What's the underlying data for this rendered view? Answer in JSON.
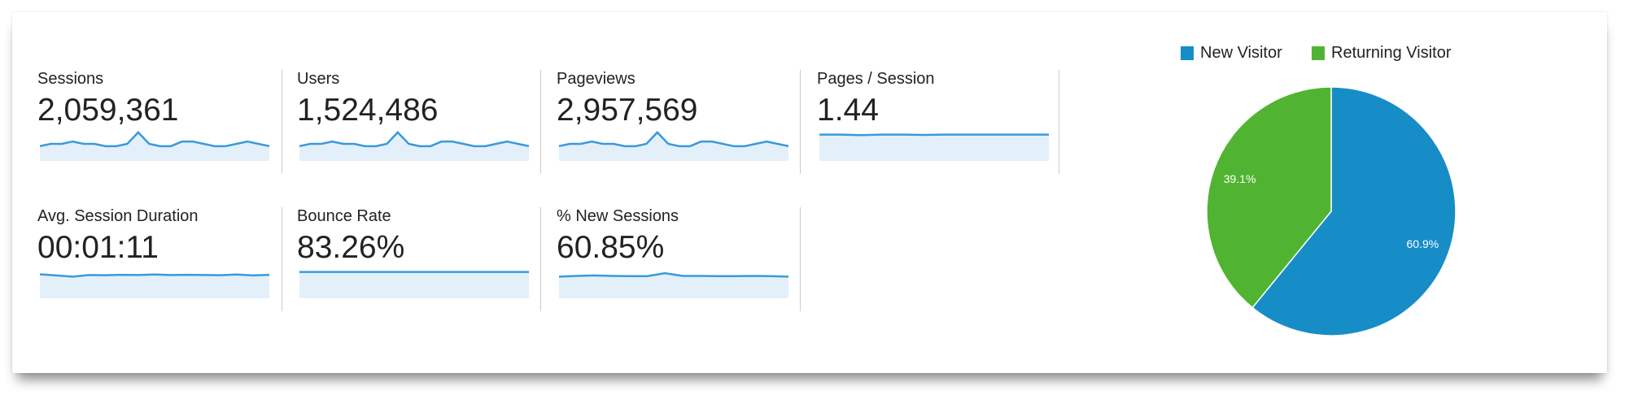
{
  "metrics": [
    {
      "label": "Sessions",
      "value": "2,059,361",
      "trend": [
        5,
        6,
        6,
        7,
        6,
        6,
        5,
        5,
        6,
        11,
        6,
        5,
        5,
        7,
        7,
        6,
        5,
        5,
        6,
        7,
        6,
        5
      ]
    },
    {
      "label": "Users",
      "value": "1,524,486",
      "trend": [
        5,
        6,
        6,
        7,
        6,
        6,
        5,
        5,
        6,
        11,
        6,
        5,
        5,
        7,
        7,
        6,
        5,
        5,
        6,
        7,
        6,
        5
      ]
    },
    {
      "label": "Pageviews",
      "value": "2,957,569",
      "trend": [
        5,
        6,
        6,
        7,
        6,
        6,
        5,
        5,
        6,
        11,
        6,
        5,
        5,
        7,
        7,
        6,
        5,
        5,
        6,
        7,
        6,
        5
      ]
    },
    {
      "label": "Pages / Session",
      "value": "1.44",
      "trend": [
        10,
        10,
        9.8,
        10,
        10,
        9.9,
        10,
        10,
        10,
        10,
        10,
        10
      ]
    },
    {
      "label": "Avg. Session Duration",
      "value": "00:01:11",
      "trend": [
        9,
        8.5,
        8,
        8.7,
        8.6,
        8.8,
        8.7,
        8.9,
        8.7,
        8.8,
        8.7,
        8.6,
        8.9,
        8.5,
        8.8
      ]
    },
    {
      "label": "Bounce Rate",
      "value": "83.26%",
      "trend": [
        10,
        10,
        10,
        10,
        10,
        10,
        10,
        10,
        10,
        10
      ]
    },
    {
      "label": "% New Sessions",
      "value": "60.85%",
      "trend": [
        8,
        8.3,
        8.5,
        8.3,
        8.2,
        8.2,
        9.5,
        8.3,
        8.3,
        8.2,
        8.2,
        8.3,
        8.2,
        8
      ]
    }
  ],
  "colors": {
    "sparkline": "#3a9ad9",
    "sparkfill": "#e3f0fa",
    "new": "#168dc7",
    "returning": "#50b432"
  },
  "chart_data": {
    "type": "pie",
    "legend_position": "top",
    "slices": [
      {
        "name": "New Visitor",
        "value": 60.9,
        "label": "60.9%",
        "color": "#168dc7"
      },
      {
        "name": "Returning Visitor",
        "value": 39.1,
        "label": "39.1%",
        "color": "#50b432"
      }
    ]
  }
}
